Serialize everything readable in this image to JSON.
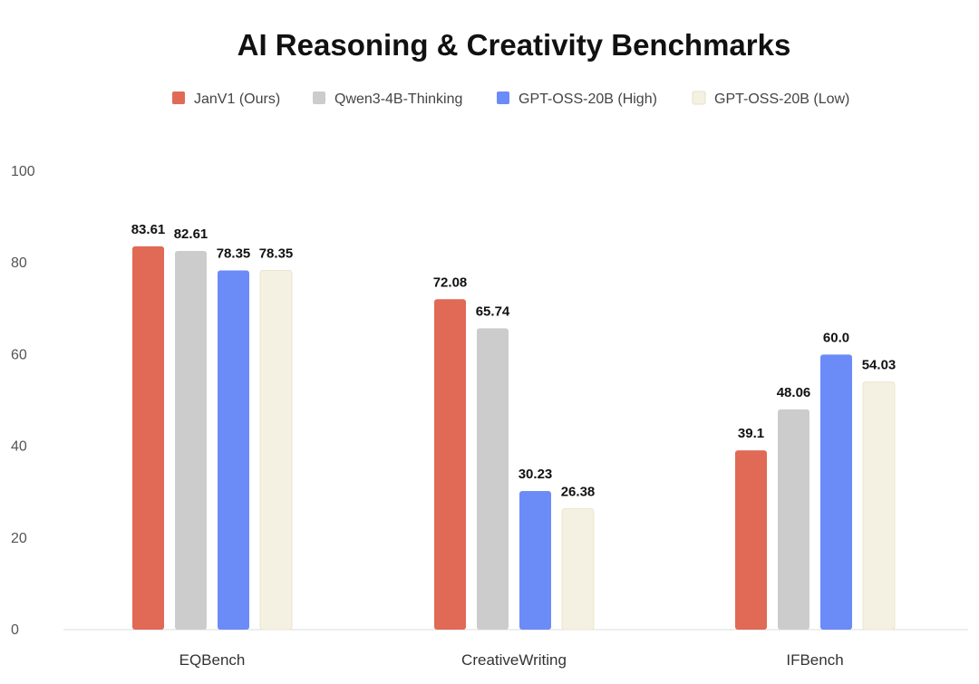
{
  "chart_data": {
    "type": "bar",
    "title": "AI Reasoning & Creativity Benchmarks",
    "categories": [
      "EQBench",
      "CreativeWriting",
      "IFBench"
    ],
    "series": [
      {
        "name": "JanV1 (Ours)",
        "color": "#E06A55",
        "values": [
          83.61,
          72.08,
          39.1
        ],
        "labels": [
          "83.61",
          "72.08",
          "39.1"
        ]
      },
      {
        "name": "Qwen3-4B-Thinking",
        "color": "#CCCCCC",
        "values": [
          82.61,
          65.74,
          48.06
        ],
        "labels": [
          "82.61",
          "65.74",
          "48.06"
        ]
      },
      {
        "name": "GPT-OSS-20B (High)",
        "color": "#6B8BF7",
        "values": [
          78.35,
          30.23,
          60.0
        ],
        "labels": [
          "78.35",
          "30.23",
          "60.0"
        ]
      },
      {
        "name": "GPT-OSS-20B (Low)",
        "color": "#F5F1E2",
        "values": [
          78.35,
          26.38,
          54.03
        ],
        "labels": [
          "78.35",
          "26.38",
          "54.03"
        ]
      }
    ],
    "xlabel": "",
    "ylabel": "",
    "ylim": [
      0,
      100
    ],
    "yticks": [
      "0",
      "20",
      "40",
      "60",
      "80",
      "100"
    ],
    "ytick_values": [
      0,
      20,
      40,
      60,
      80,
      100
    ],
    "legend_position": "top-center",
    "grid": false
  }
}
